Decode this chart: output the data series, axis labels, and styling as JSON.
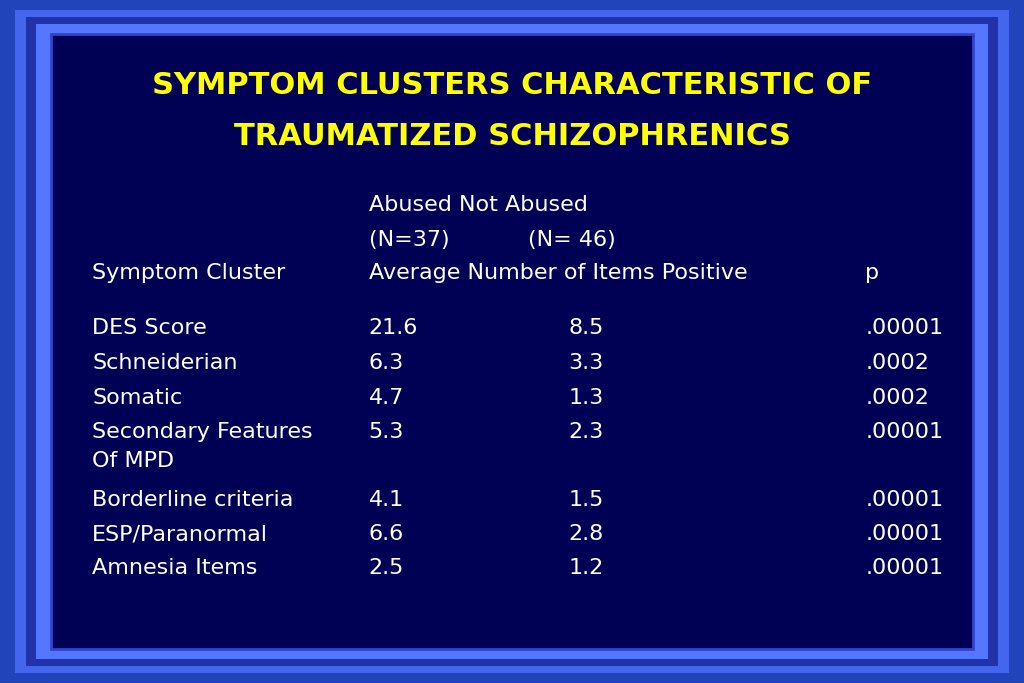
{
  "title_line1": "SYMPTOM CLUSTERS CHARACTERISTIC OF",
  "title_line2": "TRAUMATIZED SCHIZOPHRENICS",
  "title_color": "#FFFF00",
  "title_fontsize": 22,
  "bg_outer": "#3355CC",
  "bg_inner": "#000066",
  "text_color_white": "#FFFFFF",
  "text_color_cyan": "#FFFFFF",
  "header1_line1": "Abused Not Abused",
  "header1_line2": "(N=37)           (N= 46)",
  "header2": "Symptom Cluster",
  "header3": "Average Number of Items Positive",
  "header4": "p",
  "rows": [
    {
      "cluster": "DES Score",
      "abused": "21.6",
      "not_abused": "8.5",
      "p": ".00001"
    },
    {
      "cluster": "Schneiderian",
      "abused": "6.3",
      "not_abused": "3.3",
      "p": ".0002"
    },
    {
      "cluster": "Somatic",
      "abused": "4.7",
      "not_abused": "1.3",
      "p": ".0002"
    },
    {
      "cluster": "Secondary Features",
      "abused": "5.3",
      "not_abused": "2.3",
      "p": ".00001"
    },
    {
      "cluster": "Of MPD",
      "abused": "",
      "not_abused": "",
      "p": ""
    },
    {
      "cluster": "Borderline criteria",
      "abused": "4.1",
      "not_abused": "1.5",
      "p": ".00001"
    },
    {
      "cluster": "ESP/Paranormal",
      "abused": "6.6",
      "not_abused": "2.8",
      "p": ".00001"
    },
    {
      "cluster": "Amnesia Items",
      "abused": "2.5",
      "not_abused": "1.2",
      "p": ".00001"
    }
  ],
  "data_fontsize": 16,
  "header_fontsize": 16,
  "col_cluster": 0.09,
  "col_abused": 0.36,
  "col_not_abused": 0.555,
  "col_p": 0.845
}
